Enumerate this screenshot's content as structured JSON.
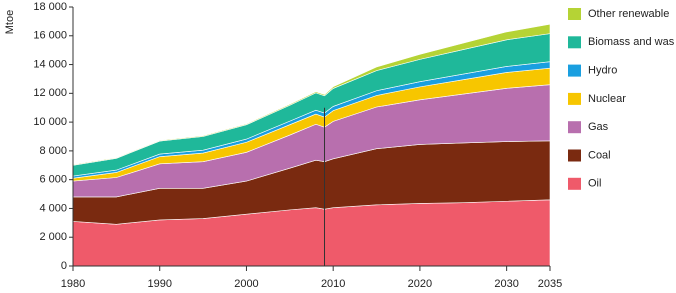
{
  "chart_data": {
    "type": "stacked-area",
    "y_label": "Mtoe",
    "x": [
      1980,
      1985,
      1990,
      1995,
      2000,
      2005,
      2008,
      2009,
      2010,
      2015,
      2020,
      2025,
      2030,
      2035
    ],
    "xlim": [
      1980,
      2035
    ],
    "xticks": [
      1980,
      1990,
      2000,
      2010,
      2020,
      2030,
      2035
    ],
    "ylim": [
      0,
      18000
    ],
    "yticks": [
      0,
      {
        "value": 2000,
        "label": "2 000"
      },
      {
        "value": 4000,
        "label": "4 000"
      },
      {
        "value": 6000,
        "label": "6 000"
      },
      {
        "value": 8000,
        "label": "8 000"
      },
      {
        "value": 10000,
        "label": "10 000"
      },
      {
        "value": 12000,
        "label": "12 000"
      },
      {
        "value": 14000,
        "label": "14 000"
      },
      {
        "value": 16000,
        "label": "16 000"
      },
      {
        "value": 18000,
        "label": "18 000"
      }
    ],
    "divider_x": 2009,
    "series": [
      {
        "name": "Oil",
        "color": "#ef5a6a",
        "values": [
          3100,
          2900,
          3200,
          3300,
          3600,
          3900,
          4050,
          3950,
          4050,
          4250,
          4350,
          4400,
          4500,
          4600
        ]
      },
      {
        "name": "Coal",
        "color": "#7a2a10",
        "values": [
          1700,
          1900,
          2200,
          2100,
          2300,
          2900,
          3300,
          3300,
          3400,
          3900,
          4100,
          4150,
          4150,
          4100
        ]
      },
      {
        "name": "Gas",
        "color": "#b86fae",
        "values": [
          1100,
          1350,
          1700,
          1850,
          2000,
          2300,
          2500,
          2400,
          2600,
          2900,
          3100,
          3400,
          3700,
          3900
        ]
      },
      {
        "name": "Nuclear",
        "color": "#f7c600",
        "values": [
          200,
          350,
          500,
          600,
          700,
          720,
          710,
          700,
          750,
          800,
          900,
          1000,
          1100,
          1150
        ]
      },
      {
        "name": "Hydro",
        "color": "#1a9fe0",
        "values": [
          150,
          165,
          180,
          200,
          220,
          250,
          270,
          280,
          290,
          330,
          360,
          390,
          420,
          450
        ]
      },
      {
        "name": "Biomass and was",
        "color": "#1fb89a",
        "values": [
          750,
          820,
          900,
          950,
          1000,
          1100,
          1200,
          1200,
          1250,
          1400,
          1550,
          1700,
          1850,
          1950
        ]
      },
      {
        "name": "Other renewable",
        "color": "#b5d335",
        "values": [
          50,
          50,
          50,
          55,
          60,
          70,
          80,
          90,
          120,
          250,
          350,
          450,
          550,
          650
        ]
      }
    ]
  }
}
